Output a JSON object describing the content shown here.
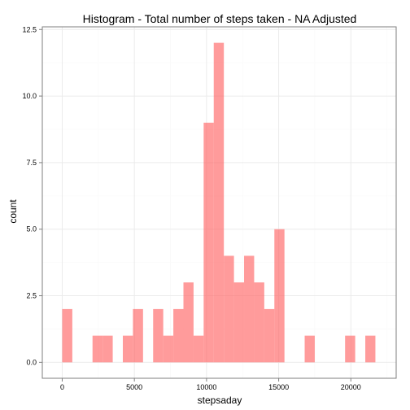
{
  "chart_data": {
    "type": "bar",
    "title": "Histogram - Total number of steps taken - NA Adjusted",
    "xlabel": "stepsaday",
    "ylabel": "count",
    "xlim": [
      -1380,
      23140
    ],
    "ylim": [
      -0.6,
      12.6
    ],
    "x_ticks": [
      0,
      5000,
      10000,
      15000,
      20000
    ],
    "x_tick_labels": [
      "0",
      "5000",
      "10000",
      "15000",
      "20000"
    ],
    "y_ticks": [
      0,
      2.5,
      5,
      7.5,
      10,
      12.5
    ],
    "y_tick_labels": [
      "0.0",
      "2.5",
      "5.0",
      "7.5",
      "10.0",
      "12.5"
    ],
    "grid": true,
    "bar_color": "#ff6666",
    "bar_opacity": 0.65,
    "bins": [
      {
        "x0": 0,
        "x1": 700,
        "count": 2
      },
      {
        "x0": 2100,
        "x1": 2800,
        "count": 1
      },
      {
        "x0": 2800,
        "x1": 3500,
        "count": 1
      },
      {
        "x0": 4200,
        "x1": 4900,
        "count": 1
      },
      {
        "x0": 4900,
        "x1": 5600,
        "count": 2
      },
      {
        "x0": 6300,
        "x1": 7000,
        "count": 2
      },
      {
        "x0": 7000,
        "x1": 7700,
        "count": 1
      },
      {
        "x0": 7700,
        "x1": 8400,
        "count": 2
      },
      {
        "x0": 8400,
        "x1": 9100,
        "count": 3
      },
      {
        "x0": 9100,
        "x1": 9800,
        "count": 1
      },
      {
        "x0": 9800,
        "x1": 10500,
        "count": 9
      },
      {
        "x0": 10500,
        "x1": 11200,
        "count": 12
      },
      {
        "x0": 11200,
        "x1": 11900,
        "count": 4
      },
      {
        "x0": 11900,
        "x1": 12600,
        "count": 3
      },
      {
        "x0": 12600,
        "x1": 13300,
        "count": 4
      },
      {
        "x0": 13300,
        "x1": 14000,
        "count": 3
      },
      {
        "x0": 14000,
        "x1": 14700,
        "count": 2
      },
      {
        "x0": 14700,
        "x1": 15400,
        "count": 5
      },
      {
        "x0": 16800,
        "x1": 17500,
        "count": 1
      },
      {
        "x0": 19600,
        "x1": 20300,
        "count": 1
      },
      {
        "x0": 21000,
        "x1": 21700,
        "count": 1
      }
    ]
  }
}
